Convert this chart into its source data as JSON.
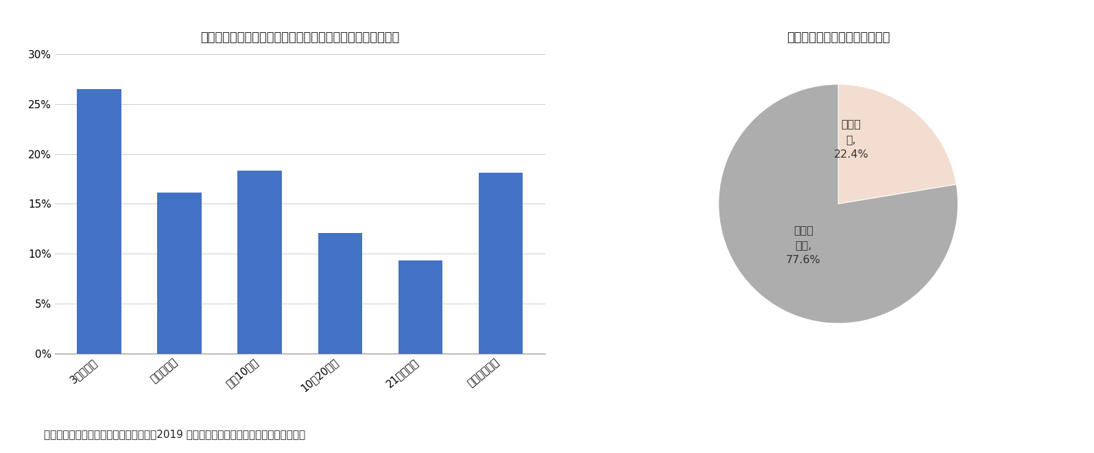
{
  "bar_title": "図表１　中国におけるサラリーマンの１週間の平均残業時間",
  "pie_title": "図表２　残業代の支払いの有無",
  "bar_categories": [
    "3時間以内",
    "４〜５時間",
    "６〜10時間",
    "10〜20時間",
    "21時間以上",
    "残業をしない"
  ],
  "bar_values": [
    26.5,
    16.1,
    18.3,
    12.1,
    9.3,
    18.1
  ],
  "bar_color": "#4472C4",
  "bar_ylim": [
    0,
    0.3
  ],
  "bar_yticks": [
    0,
    0.05,
    0.1,
    0.15,
    0.2,
    0.25,
    0.3
  ],
  "bar_yticklabels": [
    "0%",
    "5%",
    "10%",
    "15%",
    "20%",
    "25%",
    "30%"
  ],
  "pie_values": [
    22.4,
    77.6
  ],
  "pie_colors": [
    "#F2DDD0",
    "#ADADAD"
  ],
  "pie_label_ari_line1": "支払い",
  "pie_label_ari_line2": "有,",
  "pie_label_ari_line3": "22.4%",
  "pie_label_nashi_line1": "支払い",
  "pie_label_nashi_line2": "無し,",
  "pie_label_nashi_line3": "77.6%",
  "source_text": "（出所）図表１、図表２とも智聯招聘「2019 年中国ホワイトカラー職場生活現状報告」",
  "background_color": "#FFFFFF",
  "title_fontsize": 13,
  "tick_fontsize": 11,
  "source_fontsize": 11
}
